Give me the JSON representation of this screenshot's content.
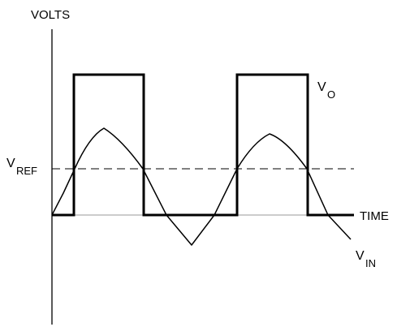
{
  "diagram": {
    "type": "comparator-waveform",
    "labels": {
      "y_axis": "VOLTS",
      "x_axis": "TIME",
      "vref_main": "V",
      "vref_sub": "REF",
      "vo_main": "V",
      "vo_sub": "O",
      "vin_main": "V",
      "vin_sub": "IN"
    },
    "colors": {
      "ink": "#000000",
      "baseline": "#999999",
      "background": "#ffffff"
    }
  }
}
